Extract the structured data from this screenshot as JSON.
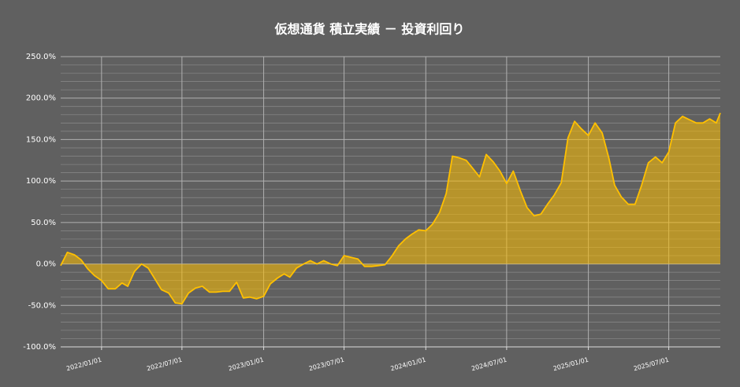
{
  "chart_data": {
    "type": "area",
    "title": "仮想通貨 積立実績 － 投資利回り",
    "x": [
      "2021/10/01",
      "2021/10/16",
      "2021/11/01",
      "2021/11/16",
      "2021/12/01",
      "2021/12/16",
      "2022/01/01",
      "2022/01/16",
      "2022/02/01",
      "2022/02/16",
      "2022/03/01",
      "2022/03/16",
      "2022/04/01",
      "2022/04/16",
      "2022/05/01",
      "2022/05/16",
      "2022/06/01",
      "2022/06/16",
      "2022/07/01",
      "2022/07/16",
      "2022/08/01",
      "2022/08/16",
      "2022/09/01",
      "2022/09/16",
      "2022/10/01",
      "2022/10/16",
      "2022/11/01",
      "2022/11/16",
      "2022/12/01",
      "2022/12/16",
      "2023/01/01",
      "2023/01/16",
      "2023/02/01",
      "2023/02/16",
      "2023/03/01",
      "2023/03/16",
      "2023/04/01",
      "2023/04/16",
      "2023/05/01",
      "2023/05/16",
      "2023/06/01",
      "2023/06/16",
      "2023/07/01",
      "2023/07/16",
      "2023/08/01",
      "2023/08/16",
      "2023/09/01",
      "2023/09/16",
      "2023/10/01",
      "2023/10/16",
      "2023/11/01",
      "2023/11/16",
      "2023/12/01",
      "2023/12/16",
      "2024/01/01",
      "2024/01/16",
      "2024/02/01",
      "2024/02/16",
      "2024/03/01",
      "2024/03/16",
      "2024/04/01",
      "2024/04/16",
      "2024/05/01",
      "2024/05/16",
      "2024/06/01",
      "2024/06/16",
      "2024/07/01",
      "2024/07/16",
      "2024/08/01",
      "2024/08/16",
      "2024/09/01",
      "2024/09/16",
      "2024/10/01",
      "2024/10/16",
      "2024/11/01",
      "2024/11/16",
      "2024/12/01",
      "2024/12/16",
      "2025/01/01",
      "2025/01/16",
      "2025/02/01",
      "2025/02/16",
      "2025/03/01",
      "2025/03/16",
      "2025/04/01",
      "2025/04/16",
      "2025/05/01",
      "2025/05/16",
      "2025/06/01",
      "2025/06/16",
      "2025/07/01",
      "2025/07/16",
      "2025/08/01",
      "2025/08/16",
      "2025/09/01",
      "2025/09/16",
      "2025/10/01",
      "2025/10/16",
      "2025/10/25"
    ],
    "values": [
      -2,
      14,
      11,
      5,
      -6,
      -14,
      -20,
      -30,
      -30,
      -23,
      -27,
      -9,
      0,
      -5,
      -18,
      -31,
      -35,
      -47,
      -48,
      -35,
      -29,
      -27,
      -34,
      -34,
      -33,
      -33,
      -22,
      -41,
      -40,
      -42,
      -39,
      -24,
      -17,
      -12,
      -16,
      -5,
      0,
      4,
      0,
      4,
      0,
      -2,
      10,
      8,
      6,
      -3,
      -3,
      -2,
      -1,
      9,
      22,
      30,
      36,
      41,
      40,
      48,
      62,
      85,
      130,
      128,
      125,
      115,
      105,
      132,
      123,
      112,
      97,
      112,
      88,
      68,
      58,
      60,
      72,
      83,
      98,
      152,
      172,
      163,
      155,
      170,
      158,
      128,
      95,
      81,
      72,
      72,
      95,
      122,
      129,
      122,
      135,
      170,
      178,
      174,
      170,
      170,
      175,
      170,
      182
    ],
    "color": "#ffc000",
    "xlim": [
      "2021/10/01",
      "2025/10/25"
    ],
    "xticks": [
      "2022/01/01",
      "2022/07/01",
      "2023/01/01",
      "2023/07/01",
      "2024/01/01",
      "2024/07/01",
      "2025/01/01",
      "2025/07/01"
    ],
    "ylim": [
      -100,
      250
    ],
    "yticks": [
      {
        "value": -100,
        "label": "-100.0%"
      },
      {
        "value": -50,
        "label": "-50.0%"
      },
      {
        "value": 0,
        "label": "0.0%"
      },
      {
        "value": 50,
        "label": "50.0%"
      },
      {
        "value": 100,
        "label": "100.0%"
      },
      {
        "value": 150,
        "label": "150.0%"
      },
      {
        "value": 200,
        "label": "200.0%"
      },
      {
        "value": 250,
        "label": "250.0%"
      }
    ],
    "minor_yticks": [
      -90,
      -80,
      -70,
      -60,
      -40,
      -30,
      -20,
      -10,
      10,
      20,
      30,
      40,
      60,
      70,
      80,
      90,
      110,
      120,
      130,
      140,
      160,
      170,
      180,
      190,
      210,
      220,
      230,
      240
    ],
    "grid": true
  }
}
